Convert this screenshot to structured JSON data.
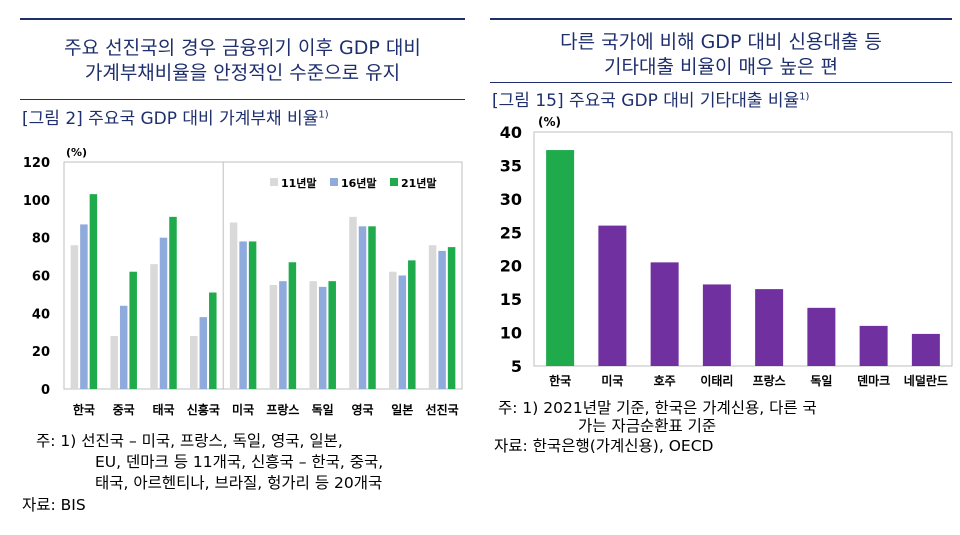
{
  "left": {
    "headline_lines": [
      "주요 선진국의 경우 금융위기 이후 GDP 대비",
      "가계부채비율을 안정적인 수준으로 유지"
    ],
    "figure_title": "[그림 2] 주요국 GDP 대비 가계부채 비율",
    "figure_title_sup": "1)",
    "notes": [
      "주:  1) 선진국 – 미국, 프랑스, 독일, 영국, 일본,",
      "EU, 덴마크 등 11개국, 신흥국 – 한국, 중국,",
      "태국, 아르헨티나, 브라질, 헝가리 등 20개국",
      "자료: BIS"
    ]
  },
  "right": {
    "headline_lines": [
      "다른 국가에 비해 GDP 대비 신용대출 등",
      "기타대출 비율이 매우 높은 편"
    ],
    "figure_title": "[그림 15] 주요국 GDP 대비 기타대출 비율",
    "figure_title_sup": "1)",
    "notes": [
      "주:  1) 2021년말 기준, 한국은 가계신용, 다른 국",
      "가는 자금순환표 기준",
      "자료: 한국은행(가계신용), OECD"
    ]
  },
  "chart_data": [
    {
      "type": "bar",
      "unit": "(%)",
      "categories": [
        "한국",
        "중국",
        "태국",
        "신흥국",
        "미국",
        "프랑스",
        "독일",
        "영국",
        "일본",
        "선진국"
      ],
      "series": [
        {
          "name": "11년말",
          "color": "#d9d9d9",
          "values": [
            76,
            28,
            66,
            28,
            88,
            55,
            57,
            91,
            62,
            76
          ]
        },
        {
          "name": "16년말",
          "color": "#8faadc",
          "values": [
            87,
            44,
            80,
            38,
            78,
            57,
            54,
            86,
            60,
            73
          ]
        },
        {
          "name": "21년말",
          "color": "#1faa4b",
          "values": [
            103,
            62,
            91,
            51,
            78,
            67,
            57,
            86,
            68,
            75
          ]
        }
      ],
      "ylim": [
        0,
        120
      ],
      "yticks": [
        0,
        20,
        40,
        60,
        80,
        100,
        120
      ],
      "legend_position": "top-right",
      "grid": false
    },
    {
      "type": "bar",
      "unit": "(%)",
      "categories": [
        "한국",
        "미국",
        "호주",
        "이태리",
        "프랑스",
        "독일",
        "덴마크",
        "네덜란드"
      ],
      "values": [
        37.3,
        26.0,
        20.5,
        17.2,
        16.5,
        13.7,
        11.0,
        9.8
      ],
      "colors": [
        "#1faa4b",
        "#7030a0",
        "#7030a0",
        "#7030a0",
        "#7030a0",
        "#7030a0",
        "#7030a0",
        "#7030a0"
      ],
      "ylim": [
        5,
        40
      ],
      "yticks": [
        5,
        10,
        15,
        20,
        25,
        30,
        35,
        40
      ],
      "grid": false
    }
  ]
}
